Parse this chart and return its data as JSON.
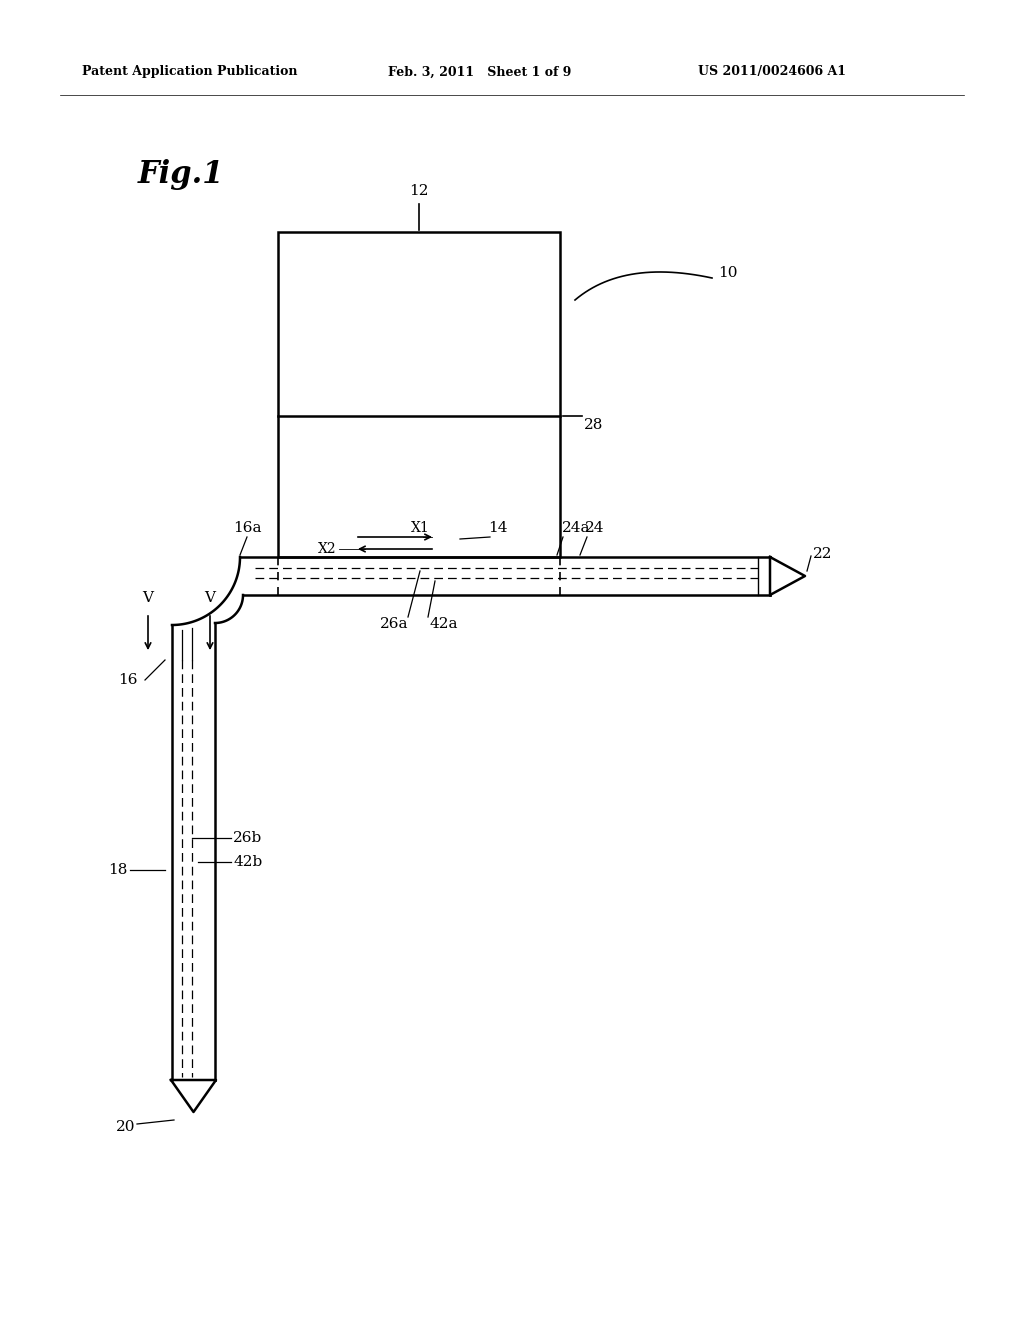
{
  "bg_color": "#ffffff",
  "header_left": "Patent Application Publication",
  "header_mid": "Feb. 3, 2011   Sheet 1 of 9",
  "header_right": "US 2011/0024606 A1",
  "fig_label": "Fig.1",
  "label_10": "10",
  "label_12": "12",
  "label_14": "14",
  "label_16": "16",
  "label_16a": "16a",
  "label_18": "18",
  "label_20": "20",
  "label_22": "22",
  "label_24": "24",
  "label_24a": "24a",
  "label_26a": "26a",
  "label_26b": "26b",
  "label_28": "28",
  "label_42a": "42a",
  "label_42b": "42b",
  "label_V1": "V",
  "label_V2": "V",
  "label_X1": "X1",
  "label_X2": "X2"
}
